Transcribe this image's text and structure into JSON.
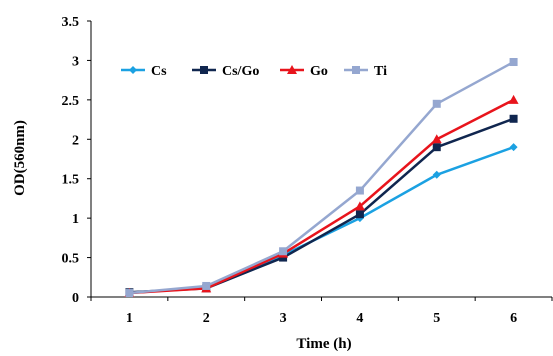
{
  "chart_data": {
    "type": "line",
    "title": "",
    "xlabel": "Time (h)",
    "ylabel": "OD(560nm)",
    "categories": [
      "1",
      "2",
      "3",
      "4",
      "5",
      "6"
    ],
    "ylim": [
      0,
      3.5
    ],
    "yticks": [
      "0",
      "0.5",
      "1",
      "1.5",
      "2",
      "2.5",
      "3",
      "3.5"
    ],
    "grid": false,
    "legend_position": "top-left",
    "series": [
      {
        "name": "Cs",
        "color": "#1ba1e2",
        "marker": "diamond",
        "values": [
          0.05,
          0.12,
          0.53,
          1.0,
          1.55,
          1.9
        ]
      },
      {
        "name": "Cs/Go",
        "color": "#10264f",
        "marker": "square",
        "values": [
          0.06,
          0.11,
          0.5,
          1.05,
          1.9,
          2.26
        ]
      },
      {
        "name": "Go",
        "color": "#e8141c",
        "marker": "triangle",
        "values": [
          0.05,
          0.11,
          0.55,
          1.15,
          2.0,
          2.5
        ]
      },
      {
        "name": "Ti",
        "color": "#95a7d0",
        "marker": "square",
        "values": [
          0.05,
          0.14,
          0.58,
          1.35,
          2.45,
          2.98
        ]
      }
    ]
  }
}
